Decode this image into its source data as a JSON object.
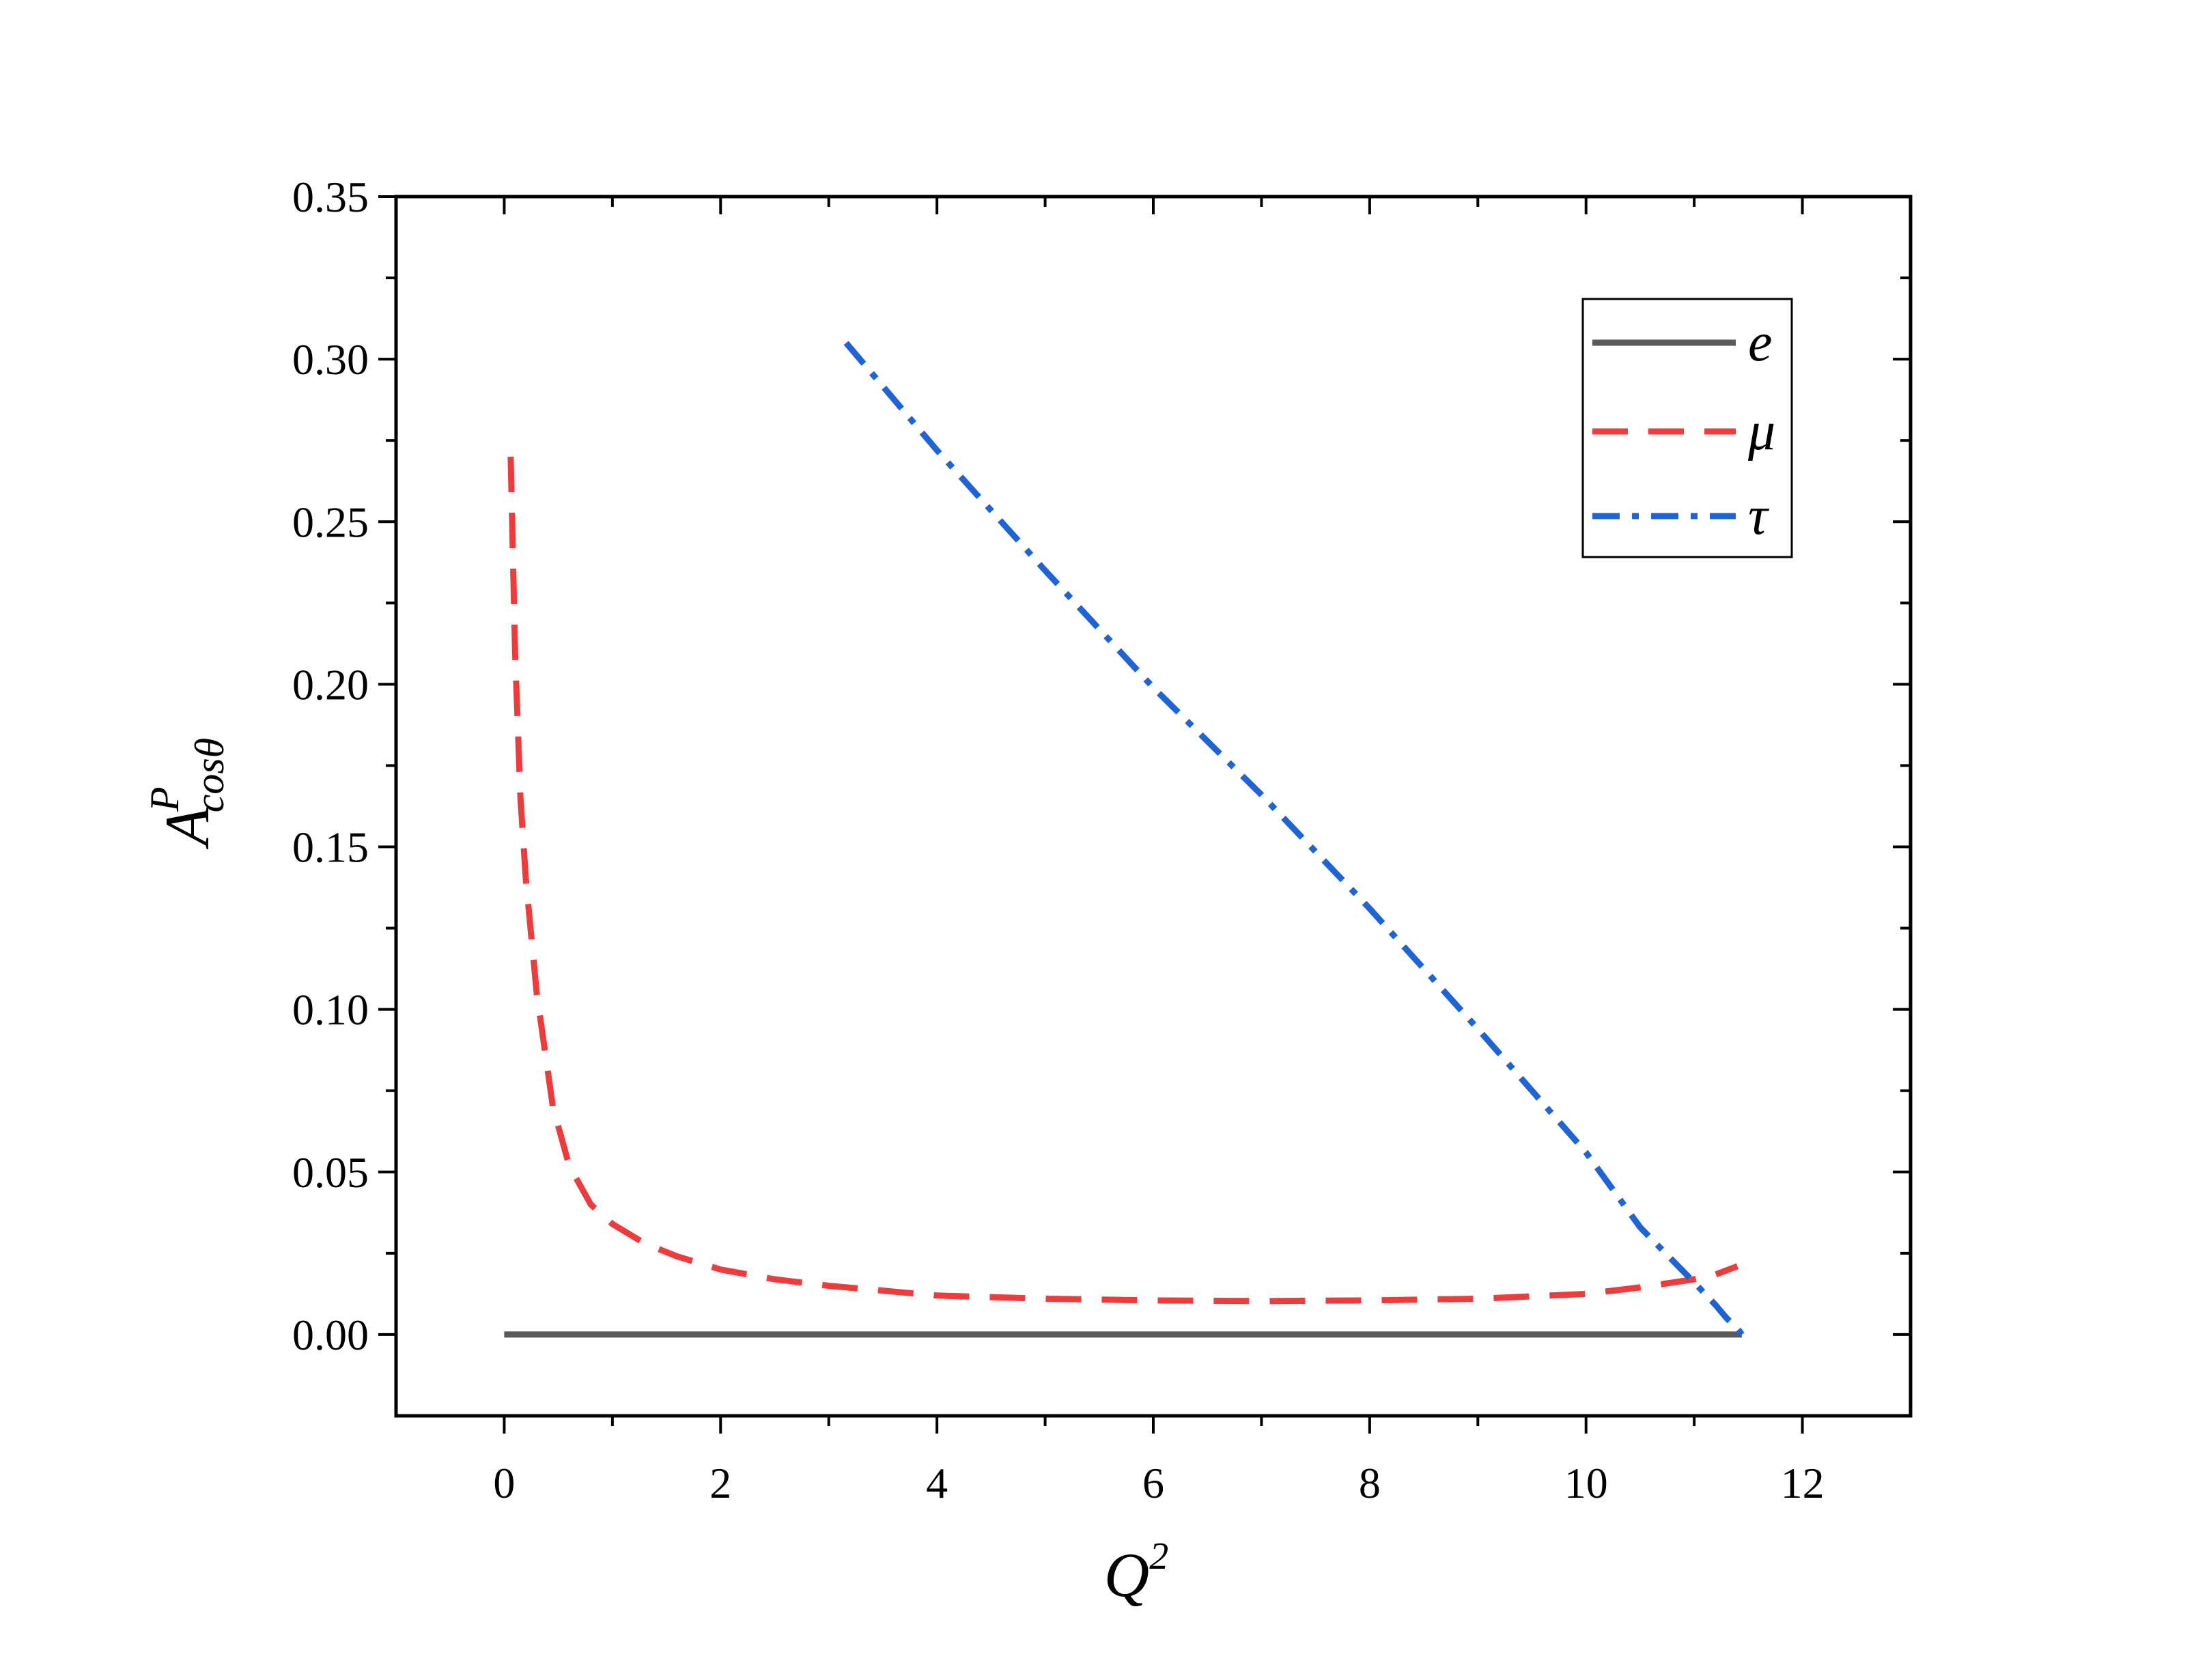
{
  "chart_data": {
    "type": "line",
    "xlabel": "Q",
    "xlabel_sup": "2",
    "ylabel": "A",
    "ylabel_sup": "P",
    "ylabel_sub": "cosθ",
    "xlim": [
      -1,
      13
    ],
    "ylim": [
      -0.025,
      0.35
    ],
    "xticks": [
      0,
      2,
      4,
      6,
      8,
      10,
      12
    ],
    "xtick_labels": [
      "0",
      "2",
      "4",
      "6",
      "8",
      "10",
      "12"
    ],
    "yticks": [
      0.0,
      0.05,
      0.1,
      0.15,
      0.2,
      0.25,
      0.3,
      0.35
    ],
    "ytick_labels": [
      "0.00",
      "0.05",
      "0.10",
      "0.15",
      "0.20",
      "0.25",
      "0.30",
      "0.35"
    ],
    "grid": false,
    "legend_position": "top-right",
    "series": [
      {
        "name": "e",
        "color": "#595959",
        "dash": "solid",
        "x": [
          0.0,
          11.44
        ],
        "y": [
          0.0,
          0.0
        ]
      },
      {
        "name": "μ",
        "color": "#ee3b3b",
        "dash": "dashed",
        "x": [
          0.06,
          0.08,
          0.1,
          0.15,
          0.2,
          0.3,
          0.45,
          0.6,
          0.8,
          1.0,
          1.3,
          1.6,
          2.0,
          2.5,
          3.0,
          4.0,
          5.0,
          6.0,
          7.0,
          8.0,
          9.0,
          10.0,
          10.5,
          11.0,
          11.2,
          11.4
        ],
        "y": [
          0.27,
          0.24,
          0.21,
          0.165,
          0.14,
          0.105,
          0.07,
          0.052,
          0.04,
          0.034,
          0.028,
          0.024,
          0.02,
          0.017,
          0.015,
          0.012,
          0.011,
          0.0105,
          0.0103,
          0.0105,
          0.011,
          0.0125,
          0.0145,
          0.017,
          0.0185,
          0.021
        ]
      },
      {
        "name": "τ",
        "color": "#1f64d6",
        "dash": "dashdot",
        "x": [
          3.16,
          4.0,
          5.0,
          6.0,
          7.0,
          8.0,
          9.0,
          10.0,
          10.5,
          11.0,
          11.2,
          11.3,
          11.38,
          11.42,
          11.44
        ],
        "y": [
          0.305,
          0.272,
          0.235,
          0.199,
          0.166,
          0.131,
          0.094,
          0.056,
          0.033,
          0.016,
          0.009,
          0.005,
          0.0025,
          0.001,
          0.0
        ]
      }
    ]
  }
}
